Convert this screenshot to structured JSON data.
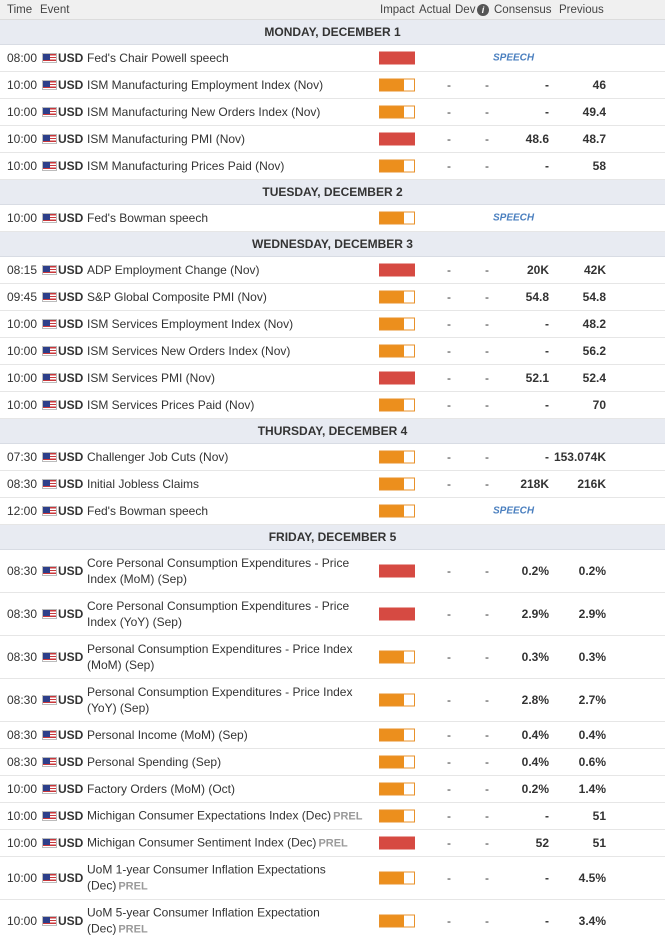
{
  "header": {
    "time": "Time",
    "event": "Event",
    "impact": "Impact",
    "actual": "Actual",
    "dev": "Dev",
    "info": "i",
    "consensus": "Consensus",
    "previous": "Previous"
  },
  "colors": {
    "high_impact": "#d64a42",
    "medium_impact": "#ec8f1d",
    "day_band": "#e8ebf2"
  },
  "sections": [
    {
      "day": "MONDAY, DECEMBER 1",
      "rows": [
        {
          "time": "08:00",
          "cur": "USD",
          "event": "Fed's Chair Powell speech",
          "impact": "high",
          "speech": "SPEECH"
        },
        {
          "time": "10:00",
          "cur": "USD",
          "event": "ISM Manufacturing Employment Index (Nov)",
          "impact": "medium",
          "actual": "-",
          "dev": "-",
          "consensus": "-",
          "previous": "46"
        },
        {
          "time": "10:00",
          "cur": "USD",
          "event": "ISM Manufacturing New Orders Index (Nov)",
          "impact": "medium",
          "actual": "-",
          "dev": "-",
          "consensus": "-",
          "previous": "49.4"
        },
        {
          "time": "10:00",
          "cur": "USD",
          "event": "ISM Manufacturing PMI (Nov)",
          "impact": "high",
          "actual": "-",
          "dev": "-",
          "consensus": "48.6",
          "previous": "48.7"
        },
        {
          "time": "10:00",
          "cur": "USD",
          "event": "ISM Manufacturing Prices Paid (Nov)",
          "impact": "medium",
          "actual": "-",
          "dev": "-",
          "consensus": "-",
          "previous": "58"
        }
      ]
    },
    {
      "day": "TUESDAY, DECEMBER 2",
      "rows": [
        {
          "time": "10:00",
          "cur": "USD",
          "event": "Fed's Bowman speech",
          "impact": "medium",
          "speech": "SPEECH"
        }
      ]
    },
    {
      "day": "WEDNESDAY, DECEMBER 3",
      "rows": [
        {
          "time": "08:15",
          "cur": "USD",
          "event": "ADP Employment Change (Nov)",
          "impact": "high",
          "actual": "-",
          "dev": "-",
          "consensus": "20K",
          "previous": "42K"
        },
        {
          "time": "09:45",
          "cur": "USD",
          "event": "S&P Global Composite PMI (Nov)",
          "impact": "medium",
          "actual": "-",
          "dev": "-",
          "consensus": "54.8",
          "previous": "54.8"
        },
        {
          "time": "10:00",
          "cur": "USD",
          "event": "ISM Services Employment Index (Nov)",
          "impact": "medium",
          "actual": "-",
          "dev": "-",
          "consensus": "-",
          "previous": "48.2"
        },
        {
          "time": "10:00",
          "cur": "USD",
          "event": "ISM Services New Orders Index (Nov)",
          "impact": "medium",
          "actual": "-",
          "dev": "-",
          "consensus": "-",
          "previous": "56.2"
        },
        {
          "time": "10:00",
          "cur": "USD",
          "event": "ISM Services PMI (Nov)",
          "impact": "high",
          "actual": "-",
          "dev": "-",
          "consensus": "52.1",
          "previous": "52.4"
        },
        {
          "time": "10:00",
          "cur": "USD",
          "event": "ISM Services Prices Paid (Nov)",
          "impact": "medium",
          "actual": "-",
          "dev": "-",
          "consensus": "-",
          "previous": "70"
        }
      ]
    },
    {
      "day": "THURSDAY, DECEMBER 4",
      "rows": [
        {
          "time": "07:30",
          "cur": "USD",
          "event": "Challenger Job Cuts (Nov)",
          "impact": "medium",
          "actual": "-",
          "dev": "-",
          "consensus": "-",
          "previous": "153.074K"
        },
        {
          "time": "08:30",
          "cur": "USD",
          "event": "Initial Jobless Claims",
          "impact": "medium",
          "actual": "-",
          "dev": "-",
          "consensus": "218K",
          "previous": "216K"
        },
        {
          "time": "12:00",
          "cur": "USD",
          "event": "Fed's Bowman speech",
          "impact": "medium",
          "speech": "SPEECH"
        }
      ]
    },
    {
      "day": "FRIDAY, DECEMBER 5",
      "rows": [
        {
          "time": "08:30",
          "cur": "USD",
          "event": "Core Personal Consumption Expenditures - Price Index (MoM) (Sep)",
          "impact": "high",
          "actual": "-",
          "dev": "-",
          "consensus": "0.2%",
          "previous": "0.2%",
          "tall": true
        },
        {
          "time": "08:30",
          "cur": "USD",
          "event": "Core Personal Consumption Expenditures - Price Index (YoY) (Sep)",
          "impact": "high",
          "actual": "-",
          "dev": "-",
          "consensus": "2.9%",
          "previous": "2.9%",
          "tall": true
        },
        {
          "time": "08:30",
          "cur": "USD",
          "event": "Personal Consumption Expenditures - Price Index (MoM) (Sep)",
          "impact": "medium",
          "actual": "-",
          "dev": "-",
          "consensus": "0.3%",
          "previous": "0.3%",
          "tall": true
        },
        {
          "time": "08:30",
          "cur": "USD",
          "event": "Personal Consumption Expenditures - Price Index (YoY) (Sep)",
          "impact": "medium",
          "actual": "-",
          "dev": "-",
          "consensus": "2.8%",
          "previous": "2.7%",
          "tall": true
        },
        {
          "time": "08:30",
          "cur": "USD",
          "event": "Personal Income (MoM) (Sep)",
          "impact": "medium",
          "actual": "-",
          "dev": "-",
          "consensus": "0.4%",
          "previous": "0.4%"
        },
        {
          "time": "08:30",
          "cur": "USD",
          "event": "Personal Spending (Sep)",
          "impact": "medium",
          "actual": "-",
          "dev": "-",
          "consensus": "0.4%",
          "previous": "0.6%"
        },
        {
          "time": "10:00",
          "cur": "USD",
          "event": "Factory Orders (MoM) (Oct)",
          "impact": "medium",
          "actual": "-",
          "dev": "-",
          "consensus": "0.2%",
          "previous": "1.4%"
        },
        {
          "time": "10:00",
          "cur": "USD",
          "event": "Michigan Consumer Expectations Index (Dec)",
          "prel": "PREL",
          "impact": "medium",
          "actual": "-",
          "dev": "-",
          "consensus": "-",
          "previous": "51"
        },
        {
          "time": "10:00",
          "cur": "USD",
          "event": "Michigan Consumer Sentiment Index (Dec)",
          "prel": "PREL",
          "impact": "high",
          "actual": "-",
          "dev": "-",
          "consensus": "52",
          "previous": "51"
        },
        {
          "time": "10:00",
          "cur": "USD",
          "event": "UoM 1-year Consumer Inflation Expectations (Dec)",
          "prel": "PREL",
          "impact": "medium",
          "actual": "-",
          "dev": "-",
          "consensus": "-",
          "previous": "4.5%",
          "tall": true
        },
        {
          "time": "10:00",
          "cur": "USD",
          "event": "UoM 5-year Consumer Inflation Expectation (Dec)",
          "prel": "PREL",
          "impact": "medium",
          "actual": "-",
          "dev": "-",
          "consensus": "-",
          "previous": "3.4%",
          "tall": true
        }
      ]
    }
  ]
}
